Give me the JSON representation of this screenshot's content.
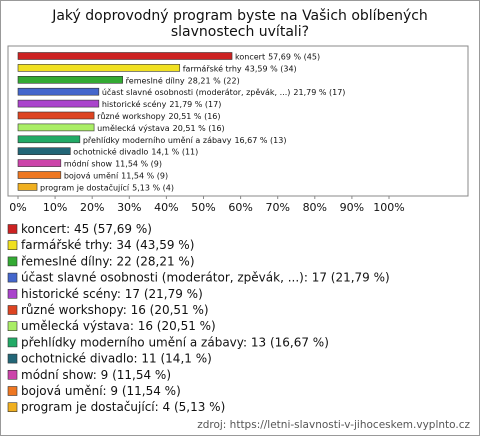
{
  "chart_data": {
    "type": "bar",
    "orientation": "horizontal",
    "title": "Jaký doprovodný program byste na Vašich oblíbených slavnostech uvítali?",
    "categories": [
      "koncert",
      "farmářské trhy",
      "řemeslné dílny",
      "účast slavné osobnosti (moderátor, zpěvák, ...)",
      "historické scény",
      "různé workshopy",
      "umělecká výstava",
      "přehlídky moderního umění a zábavy",
      "ochotnické divadlo",
      "módní show",
      "bojová umění",
      "program je dostačující"
    ],
    "values": [
      57.69,
      43.59,
      28.21,
      21.79,
      21.79,
      20.51,
      20.51,
      16.67,
      14.1,
      11.54,
      11.54,
      5.13
    ],
    "value_labels": [
      "57,69 % (45)",
      "43,59 % (34)",
      "28,21 % (22)",
      "21,79 % (17)",
      "21,79 % (17)",
      "20,51 % (16)",
      "20,51 % (16)",
      "16,67 % (13)",
      "14,1 % (11)",
      "11,54 % (9)",
      "11,54 % (9)",
      "5,13 % (4)"
    ],
    "legend_labels": [
      "koncert: 45 (57,69 %)",
      "farmářské trhy: 34 (43,59 %)",
      "řemeslné dílny: 22 (28,21 %)",
      "účast slavné osobnosti (moderátor, zpěvák, ...): 17 (21,79 %)",
      "historické scény: 17 (21,79 %)",
      "různé workshopy: 16 (20,51 %)",
      "umělecká výstava: 16 (20,51 %)",
      "přehlídky moderního umění a zábavy: 13 (16,67 %)",
      "ochotnické divadlo: 11 (14,1 %)",
      "módní show: 9 (11,54 %)",
      "bojová umění: 9 (11,54 %)",
      "program je dostačující: 4 (5,13 %)"
    ],
    "colors": [
      "#cc2222",
      "#f0e020",
      "#33aa33",
      "#4466cc",
      "#aa44cc",
      "#dd4422",
      "#aaee66",
      "#22aa66",
      "#226677",
      "#cc44aa",
      "#ee7722",
      "#f0b020"
    ],
    "xlim": [
      0,
      100
    ],
    "xticks": [
      {
        "value": 0,
        "label": "0%"
      },
      {
        "value": 10,
        "label": "10%"
      },
      {
        "value": 20,
        "label": "20%"
      },
      {
        "value": 30,
        "label": "30%"
      },
      {
        "value": 40,
        "label": "40%"
      },
      {
        "value": 50,
        "label": "50%"
      },
      {
        "value": 60,
        "label": "60%"
      },
      {
        "value": 70,
        "label": "70%"
      },
      {
        "value": 80,
        "label": "80%"
      },
      {
        "value": 90,
        "label": "90%"
      },
      {
        "value": 100,
        "label": "100%"
      }
    ],
    "source": "zdroj: https://letni-slavnosti-v-jihoceskem.vyplnto.cz"
  }
}
